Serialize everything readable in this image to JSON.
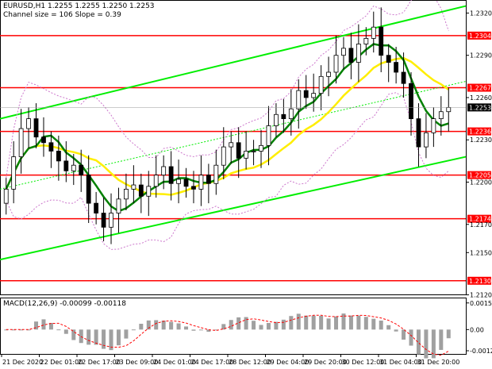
{
  "header": {
    "symbol_line": "EURUSD,H1  1.2255 1.2255 1.2250 1.2253",
    "channel_line": "Channel size = 106 Slope = 0.39"
  },
  "macd": {
    "label": "MACD(12,26,9) -0.00099 -0.00118"
  },
  "colors": {
    "level": "#ff0000",
    "channel": "#00ee00",
    "ma_fast": "#008000",
    "ma_slow": "#ffee00",
    "candle": "#000000",
    "bollinger": "#cc77cc",
    "macd_hist": "#a0a0a0",
    "macd_signal": "#ff0000"
  },
  "chart_data": {
    "type": "candlestick",
    "price_axis_ticks": [
      1.232,
      1.229,
      1.226,
      1.223,
      1.22,
      1.217,
      1.215,
      1.212
    ],
    "macd_axis_ticks": [
      "0.00152",
      "0.00",
      "-0.00121"
    ],
    "time_labels": [
      "21 Dec 2020",
      "22 Dec 01:00",
      "22 Dec 17:00",
      "23 Dec 09:00",
      "24 Dec 01:00",
      "24 Dec 17:00",
      "28 Dec 12:00",
      "29 Dec 04:00",
      "29 Dec 20:00",
      "30 Dec 12:00",
      "31 Dec 04:00",
      "31 Dec 20:00"
    ],
    "levels": [
      {
        "label": "1.2304",
        "value": 1.2304
      },
      {
        "label": "1.2267",
        "value": 1.2267
      },
      {
        "label": "1.2236",
        "value": 1.2236
      },
      {
        "label": "1.2205",
        "value": 1.2205
      },
      {
        "label": "1.2174",
        "value": 1.2174
      },
      {
        "label": "1.2130",
        "value": 1.213
      }
    ],
    "current_price": {
      "label": "1.2253",
      "value": 1.2253
    },
    "closes": [
      1.2195,
      1.2218,
      1.2238,
      1.2245,
      1.2232,
      1.2228,
      1.2222,
      1.2215,
      1.2208,
      1.2212,
      1.2205,
      1.2185,
      1.2178,
      1.2168,
      1.2178,
      1.2188,
      1.2195,
      1.2198,
      1.219,
      1.2197,
      1.2205,
      1.2211,
      1.2199,
      1.2202,
      1.2197,
      1.2195,
      1.2205,
      1.2199,
      1.2212,
      1.2225,
      1.2228,
      1.2217,
      1.2222,
      1.2222,
      1.2226,
      1.224,
      1.2248,
      1.2245,
      1.2252,
      1.2265,
      1.226,
      1.2263,
      1.2275,
      1.2278,
      1.229,
      1.2295,
      1.2285,
      1.2298,
      1.2302,
      1.231,
      1.229,
      1.2285,
      1.2278,
      1.227,
      1.2245,
      1.2225,
      1.2235,
      1.2245,
      1.225,
      1.2253
    ],
    "channel": {
      "upper": [
        1.2245,
        1.2325
      ],
      "lower": [
        1.2145,
        1.2218
      ]
    }
  }
}
